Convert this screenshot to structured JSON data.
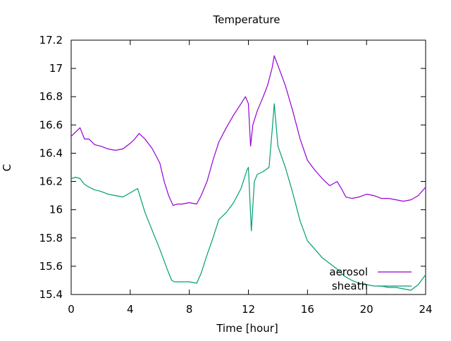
{
  "chart_data": {
    "type": "line",
    "title": "Temperature",
    "xlabel": "Time [hour]",
    "ylabel": "C",
    "xlim": [
      0,
      24
    ],
    "ylim": [
      15.4,
      17.2
    ],
    "x_ticks": [
      0,
      4,
      8,
      12,
      16,
      20,
      24
    ],
    "y_ticks": [
      15.4,
      15.6,
      15.8,
      16.0,
      16.2,
      16.4,
      16.6,
      16.8,
      17.0,
      17.2
    ],
    "y_tick_labels": [
      "15.4",
      "15.6",
      "15.8",
      "16",
      "16.2",
      "16.4",
      "16.6",
      "16.8",
      "17",
      "17.2"
    ],
    "grid": false,
    "legend_position": "bottom-right",
    "series": [
      {
        "name": "aerosol",
        "color": "#9400d3",
        "x": [
          0,
          0.3,
          0.6,
          0.9,
          1.2,
          1.6,
          2.0,
          2.5,
          3.0,
          3.5,
          4.0,
          4.3,
          4.6,
          5.0,
          5.5,
          6.0,
          6.3,
          6.6,
          6.9,
          7.2,
          7.5,
          8.0,
          8.5,
          8.8,
          9.2,
          9.6,
          10.0,
          10.5,
          11.0,
          11.5,
          11.8,
          12.0,
          12.15,
          12.3,
          12.6,
          13.0,
          13.3,
          13.6,
          13.75,
          14.0,
          14.5,
          15.0,
          15.5,
          16.0,
          16.5,
          17.0,
          17.5,
          18.0,
          18.3,
          18.6,
          19.0,
          19.5,
          20.0,
          20.5,
          21.0,
          21.5,
          22.0,
          22.5,
          23.0,
          23.5,
          24.0
        ],
        "y": [
          16.52,
          16.55,
          16.58,
          16.5,
          16.5,
          16.46,
          16.45,
          16.43,
          16.42,
          16.43,
          16.47,
          16.5,
          16.54,
          16.5,
          16.43,
          16.33,
          16.2,
          16.1,
          16.03,
          16.04,
          16.04,
          16.05,
          16.04,
          16.1,
          16.2,
          16.35,
          16.48,
          16.58,
          16.67,
          16.75,
          16.8,
          16.75,
          16.45,
          16.6,
          16.7,
          16.8,
          16.88,
          17.0,
          17.09,
          17.02,
          16.88,
          16.7,
          16.5,
          16.35,
          16.28,
          16.22,
          16.17,
          16.2,
          16.15,
          16.09,
          16.08,
          16.09,
          16.11,
          16.1,
          16.08,
          16.08,
          16.07,
          16.06,
          16.07,
          16.1,
          16.16
        ]
      },
      {
        "name": "sheath",
        "color": "#009e73",
        "x": [
          0,
          0.3,
          0.6,
          0.9,
          1.2,
          1.6,
          2.0,
          2.5,
          3.0,
          3.5,
          4.0,
          4.5,
          5.0,
          5.5,
          6.0,
          6.5,
          6.8,
          7.0,
          7.5,
          8.0,
          8.5,
          8.8,
          9.2,
          9.6,
          10.0,
          10.5,
          11.0,
          11.5,
          11.9,
          12.0,
          12.2,
          12.4,
          12.6,
          13.0,
          13.4,
          13.6,
          13.75,
          14.0,
          14.5,
          15.0,
          15.5,
          16.0,
          16.5,
          17.0,
          17.5,
          18.0,
          18.5,
          19.0,
          19.5,
          20.0,
          20.5,
          21.0,
          21.5,
          22.0,
          22.5,
          23.0,
          23.5,
          24.0
        ],
        "y": [
          16.22,
          16.23,
          16.22,
          16.18,
          16.16,
          16.14,
          16.13,
          16.11,
          16.1,
          16.09,
          16.12,
          16.15,
          15.98,
          15.85,
          15.72,
          15.58,
          15.5,
          15.49,
          15.49,
          15.49,
          15.48,
          15.55,
          15.68,
          15.8,
          15.93,
          15.98,
          16.05,
          16.15,
          16.28,
          16.3,
          15.85,
          16.2,
          16.25,
          16.27,
          16.3,
          16.55,
          16.75,
          16.45,
          16.3,
          16.12,
          15.92,
          15.78,
          15.72,
          15.66,
          15.62,
          15.58,
          15.53,
          15.5,
          15.48,
          15.47,
          15.46,
          15.46,
          15.45,
          15.45,
          15.44,
          15.43,
          15.47,
          15.54
        ]
      }
    ]
  }
}
